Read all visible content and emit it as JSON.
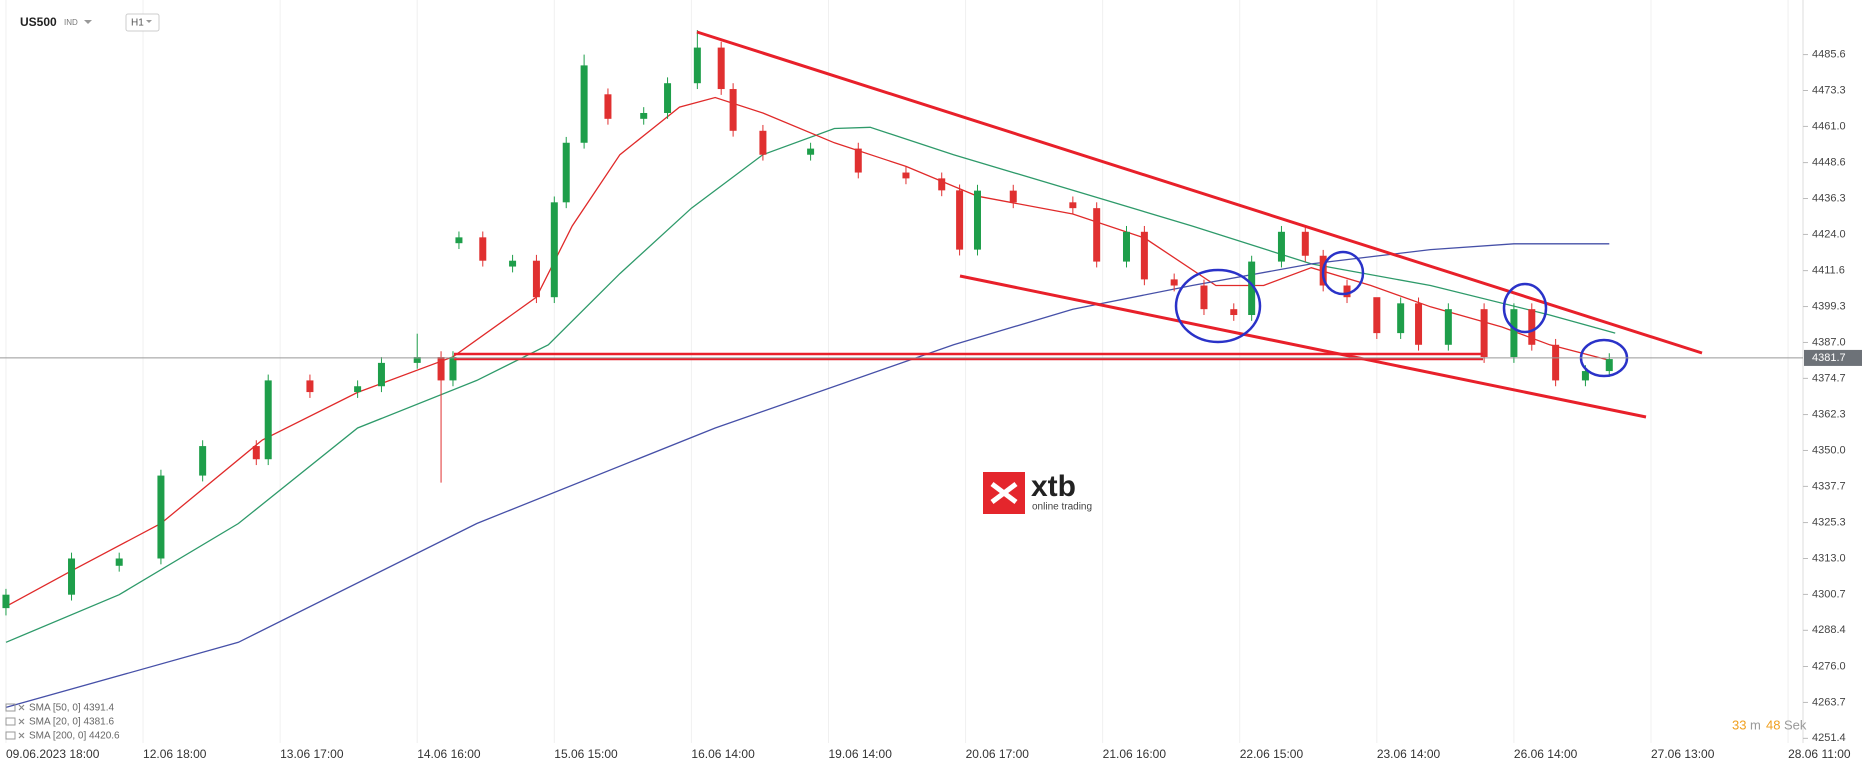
{
  "chart_data": {
    "type": "candlestick",
    "symbol": "US500",
    "instrument_type": "IND",
    "timeframe": "H1",
    "x": [
      0,
      11,
      19,
      26,
      33,
      42,
      44,
      51,
      59,
      63,
      69,
      73,
      75,
      76,
      80,
      85,
      89,
      92,
      94,
      97,
      101,
      107,
      111,
      116,
      120,
      122,
      127,
      135,
      143,
      151,
      157,
      160,
      163,
      169,
      179,
      183,
      188,
      191,
      196,
      201,
      206,
      209,
      214,
      218,
      221,
      225,
      230,
      234,
      237,
      242,
      248,
      253,
      256,
      260,
      265,
      269
    ],
    "open": [
      4296.0,
      4300.6,
      4310.5,
      4313.0,
      4341.4,
      4351.5,
      4347.0,
      4374.0,
      4370.0,
      4372.0,
      4380.0,
      4382.0,
      4374.0,
      4421.0,
      4423.0,
      4413.0,
      4415.0,
      4402.5,
      4435.0,
      4455.4,
      4472.0,
      4463.6,
      4465.6,
      4475.8,
      4488.0,
      4473.8,
      4459.5,
      4451.3,
      4453.4,
      4445.2,
      4443.2,
      4439.1,
      4418.8,
      4439.0,
      4435.0,
      4433.0,
      4414.7,
      4424.9,
      4408.6,
      4406.5,
      4398.4,
      4396.4,
      4414.7,
      4424.9,
      4416.7,
      4406.5,
      4402.5,
      4390.2,
      4400.4,
      4386.2,
      4398.4,
      4382.0,
      4398.4,
      4386.2,
      4374.0,
      4377.2
    ],
    "high": [
      4302.6,
      4315.0,
      4315.0,
      4343.4,
      4353.5,
      4353.5,
      4376.0,
      4376.0,
      4374.0,
      4382.0,
      4390.0,
      4384.0,
      4384.0,
      4425.0,
      4425.0,
      4417.0,
      4417.0,
      4437.0,
      4457.4,
      4485.6,
      4474.0,
      4467.6,
      4477.8,
      4494.0,
      4490.0,
      4475.8,
      4461.5,
      4455.4,
      4455.4,
      4447.2,
      4445.2,
      4441.1,
      4441.0,
      4441.0,
      4437.0,
      4435.0,
      4426.9,
      4426.9,
      4410.6,
      4408.5,
      4400.4,
      4416.7,
      4426.9,
      4426.9,
      4418.7,
      4408.5,
      4402.4,
      4402.4,
      4402.4,
      4400.4,
      4400.4,
      4400.4,
      4400.4,
      4388.2,
      4379.2,
      4383.3
    ],
    "low": [
      4293.5,
      4298.6,
      4308.5,
      4311.0,
      4339.4,
      4345.0,
      4345.0,
      4368.0,
      4368.0,
      4370.0,
      4378.0,
      4339.0,
      4372.0,
      4419.0,
      4413.0,
      4411.0,
      4400.5,
      4400.5,
      4433.0,
      4453.4,
      4461.6,
      4461.6,
      4463.6,
      4473.8,
      4471.8,
      4457.5,
      4449.3,
      4449.3,
      4443.2,
      4441.2,
      4437.1,
      4416.8,
      4416.8,
      4433.0,
      4431.0,
      4412.7,
      4412.7,
      4406.6,
      4404.5,
      4396.4,
      4394.4,
      4394.4,
      4412.7,
      4414.7,
      4404.5,
      4400.5,
      4388.2,
      4388.2,
      4384.2,
      4384.2,
      4380.0,
      4380.0,
      4384.2,
      4372.0,
      4372.0,
      4375.2
    ],
    "close": [
      4300.6,
      4313.0,
      4313.0,
      4341.4,
      4351.5,
      4347.0,
      4374.0,
      4370.0,
      4372.0,
      4380.0,
      4382.0,
      4374.0,
      4382.0,
      4423.0,
      4415.0,
      4415.0,
      4402.5,
      4435.0,
      4455.4,
      4481.9,
      4463.6,
      4465.6,
      4475.8,
      4488.0,
      4473.8,
      4459.5,
      4451.3,
      4453.4,
      4445.2,
      4443.2,
      4439.1,
      4418.8,
      4439.0,
      4435.0,
      4433.0,
      4414.7,
      4424.9,
      4408.6,
      4406.5,
      4398.4,
      4396.4,
      4414.7,
      4424.9,
      4416.7,
      4406.5,
      4402.5,
      4390.2,
      4400.4,
      4386.2,
      4398.4,
      4382.0,
      4398.4,
      4386.2,
      4374.0,
      4377.2,
      4381.3
    ],
    "up_color": "#1e9e4a",
    "down_color": "#e03030",
    "series": [
      {
        "name": "SMA [50, 0] 4391.4",
        "color": "#2e9a6a",
        "x": [
          0,
          19,
          39,
          59,
          79,
          91,
          103,
          115,
          127,
          139,
          145,
          159,
          179,
          199,
          219,
          239,
          259,
          270
        ],
        "values": [
          4284.3,
          4300.6,
          4325.0,
          4357.7,
          4374.0,
          4386.2,
          4410.6,
          4433.0,
          4451.3,
          4460.3,
          4460.7,
          4451.3,
          4439.1,
          4426.9,
          4413.9,
          4406.5,
          4396.4,
          4390.2
        ]
      },
      {
        "name": "SMA [20, 0] 4381.6",
        "color": "#e02a2a",
        "x": [
          0,
          11,
          26,
          43,
          59,
          75,
          89,
          95,
          103,
          113,
          119,
          127,
          139,
          151,
          163,
          179,
          191,
          203,
          211,
          219,
          229,
          239,
          251,
          259,
          269
        ],
        "values": [
          4296.6,
          4308.8,
          4325.0,
          4353.6,
          4369.9,
          4382.1,
          4402.5,
          4426.9,
          4451.3,
          4467.6,
          4470.9,
          4465.6,
          4455.4,
          4447.3,
          4437.1,
          4431.0,
          4422.8,
          4406.5,
          4406.5,
          4412.6,
          4406.5,
          4399.2,
          4392.3,
          4386.2,
          4380.9
        ]
      },
      {
        "name": "SMA [200, 0] 4420.6",
        "color": "#4650a8",
        "x": [
          0,
          39,
          79,
          119,
          159,
          179,
          199,
          219,
          239,
          253,
          269
        ],
        "values": [
          4262.0,
          4284.3,
          4325.0,
          4357.7,
          4386.2,
          4398.4,
          4406.5,
          4413.9,
          4418.8,
          4420.8,
          4420.8
        ]
      }
    ],
    "xlim": [
      -1,
      301
    ],
    "xticks": [
      {
        "value": 0,
        "label": "09.06.2023 18:00"
      },
      {
        "value": 23,
        "label": "12.06 18:00"
      },
      {
        "value": 46,
        "label": "13.06 17:00"
      },
      {
        "value": 69,
        "label": "14.06 16:00"
      },
      {
        "value": 92,
        "label": "15.06 15:00"
      },
      {
        "value": 115,
        "label": "16.06 14:00"
      },
      {
        "value": 138,
        "label": "19.06 14:00"
      },
      {
        "value": 161,
        "label": "20.06 17:00"
      },
      {
        "value": 184,
        "label": "21.06 16:00"
      },
      {
        "value": 207,
        "label": "22.06 15:00"
      },
      {
        "value": 230,
        "label": "23.06 14:00"
      },
      {
        "value": 253,
        "label": "26.06 14:00"
      },
      {
        "value": 276,
        "label": "27.06 13:00"
      },
      {
        "value": 299,
        "label": "28.06 11:00"
      }
    ],
    "ylim": [
      4249.8,
      4504.3
    ],
    "yticks": [
      4485.6,
      4473.3,
      {
        "value": 4461,
        "label": "4461.0"
      },
      4448.6,
      4436.3,
      {
        "value": 4424,
        "label": "4424.0"
      },
      4411.6,
      4399.3,
      {
        "value": 4387,
        "label": "4387.0"
      },
      4374.7,
      4362.3,
      {
        "value": 4350,
        "label": "4350.0"
      },
      4337.7,
      4325.3,
      {
        "value": 4313,
        "label": "4313.0"
      },
      4300.7,
      4288.4,
      {
        "value": 4276,
        "label": "4276.0"
      },
      4263.7,
      4251.4
    ],
    "grid": "x",
    "last_price": 4381.7,
    "countdown": {
      "minutes": 33,
      "minutes_unit": "m",
      "seconds": 48,
      "seconds_unit": "Sek"
    },
    "logo": {
      "name": "xtb",
      "tagline": "online trading"
    }
  }
}
